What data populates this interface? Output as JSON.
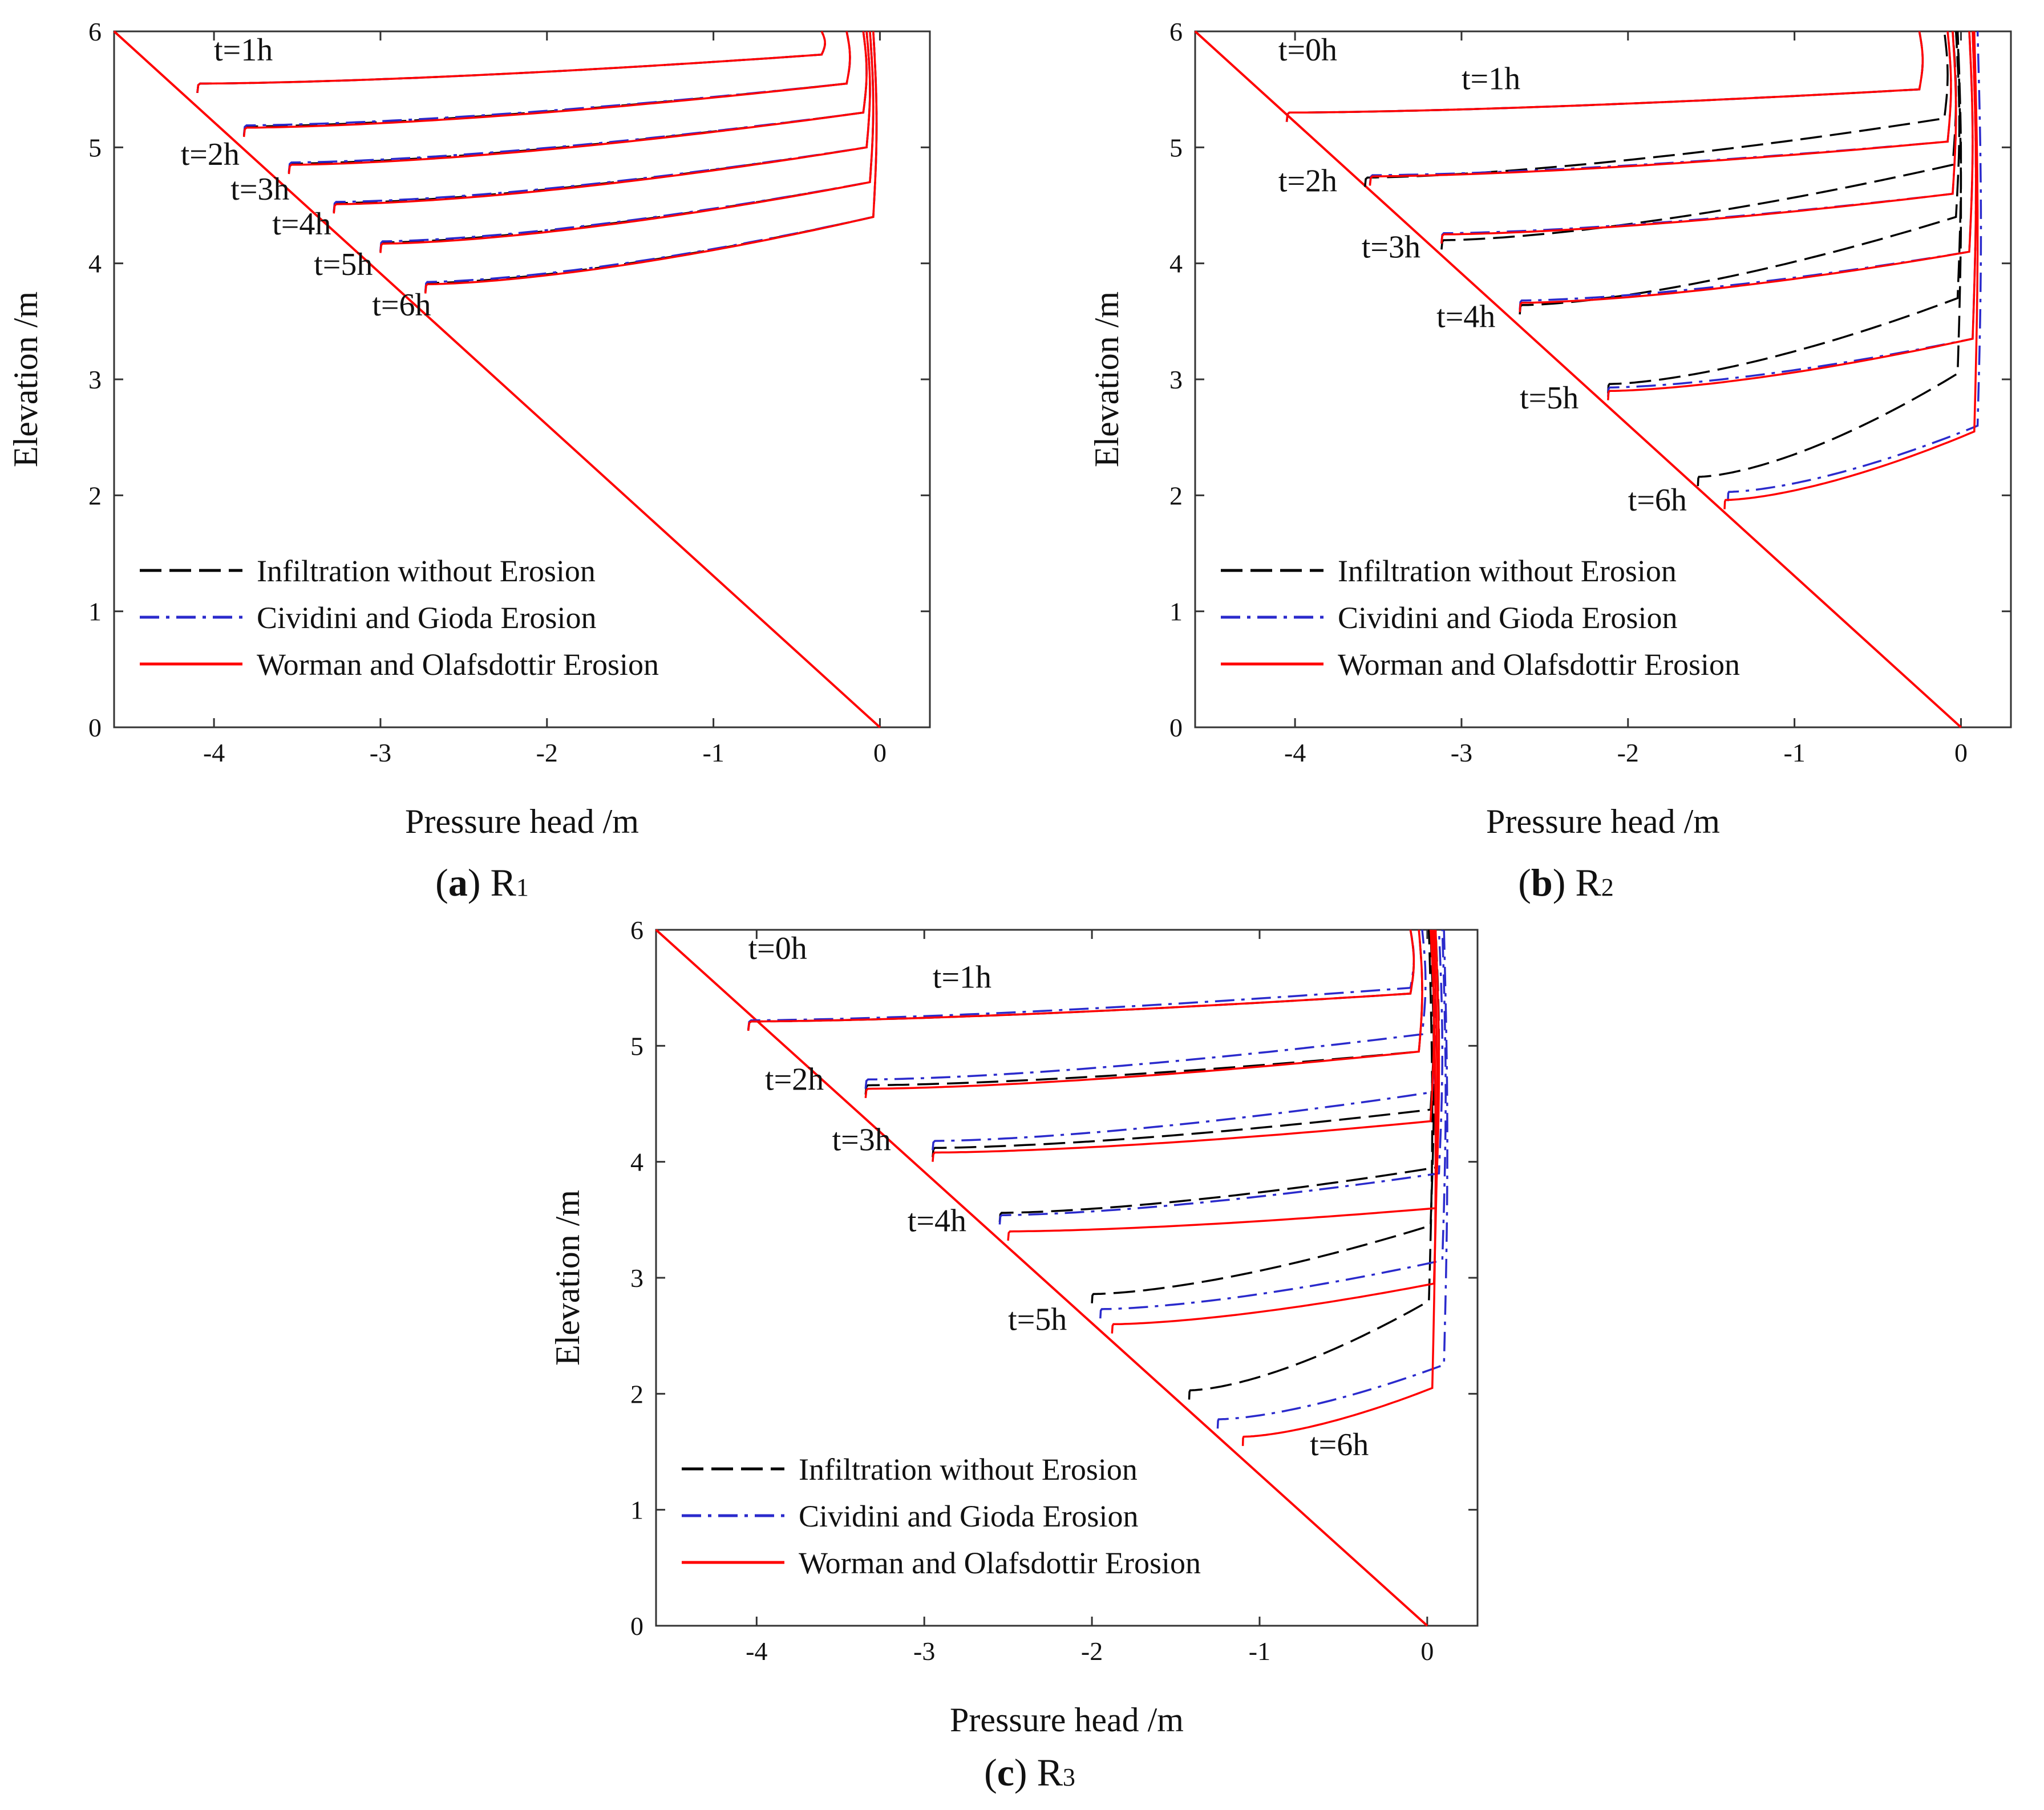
{
  "figure": {
    "description_present": false
  },
  "colors": {
    "infiltration": "#000000",
    "cividini": "#2a2acc",
    "worman": "#ff0000",
    "axis": "#333333"
  },
  "legend": {
    "items": [
      {
        "name": "Infiltration without Erosion",
        "style": "dashed",
        "color_key": "infiltration"
      },
      {
        "name": "Cividini and Gioda  Erosion",
        "style": "dashdot",
        "color_key": "cividini"
      },
      {
        "name": "Worman and Olafsdottir Erosion",
        "style": "solid",
        "color_key": "worman"
      }
    ]
  },
  "chart_data": [
    {
      "id": "R1",
      "type": "line",
      "caption_letter": "a",
      "caption_symbol": "R",
      "caption_subscript": "1",
      "xlabel": "Pressure head /m",
      "ylabel": "Elevation /m",
      "xlim": [
        -4.6,
        0.3
      ],
      "ylim": [
        0,
        6
      ],
      "xticks": [
        -4,
        -3,
        -2,
        -1,
        0
      ],
      "yticks": [
        0,
        1,
        2,
        3,
        4,
        5,
        6
      ],
      "xtick_labels": [
        "-4",
        "-3",
        "-2",
        "-1",
        "0"
      ],
      "ytick_labels": [
        "0",
        "1",
        "2",
        "3",
        "4",
        "5",
        "6"
      ],
      "initial_line": {
        "x": [
          -4.6,
          0
        ],
        "y": [
          6,
          0
        ]
      },
      "time_labels": [
        {
          "text": "t=1h",
          "x": -4.0,
          "y": 5.75
        },
        {
          "text": "t=2h",
          "x": -4.2,
          "y": 4.85
        },
        {
          "text": "t=3h",
          "x": -3.9,
          "y": 4.55
        },
        {
          "text": "t=4h",
          "x": -3.65,
          "y": 4.25
        },
        {
          "text": "t=5h",
          "x": -3.4,
          "y": 3.9
        },
        {
          "text": "t=6h",
          "x": -3.05,
          "y": 3.55
        }
      ],
      "series": [
        {
          "name": "Infiltration without Erosion",
          "fronts": [
            {
              "time": "t=1h",
              "x0": -4.1,
              "y0": 5.47,
              "y_shallow": 5.8,
              "y_top": 6.0,
              "x_near_top": -0.35
            },
            {
              "time": "t=2h",
              "x0": -3.82,
              "y0": 5.1,
              "y_shallow": 5.55,
              "y_top": 6.0,
              "x_near_top": -0.2
            },
            {
              "time": "t=3h",
              "x0": -3.55,
              "y0": 4.78,
              "y_shallow": 5.3,
              "y_top": 6.0,
              "x_near_top": -0.1
            },
            {
              "time": "t=4h",
              "x0": -3.28,
              "y0": 4.44,
              "y_shallow": 5.0,
              "y_top": 6.0,
              "x_near_top": -0.08
            },
            {
              "time": "t=5h",
              "x0": -3.0,
              "y0": 4.1,
              "y_shallow": 4.7,
              "y_top": 6.0,
              "x_near_top": -0.06
            },
            {
              "time": "t=6h",
              "x0": -2.73,
              "y0": 3.75,
              "y_shallow": 4.4,
              "y_top": 6.0,
              "x_near_top": -0.04
            }
          ]
        },
        {
          "name": "Cividini and Gioda  Erosion",
          "fronts": [
            {
              "time": "t=1h",
              "x0": -4.1,
              "y0": 5.47,
              "y_shallow": 5.8,
              "y_top": 6.0,
              "x_near_top": -0.35
            },
            {
              "time": "t=2h",
              "x0": -3.82,
              "y0": 5.11,
              "y_shallow": 5.55,
              "y_top": 6.0,
              "x_near_top": -0.2
            },
            {
              "time": "t=3h",
              "x0": -3.55,
              "y0": 4.79,
              "y_shallow": 5.3,
              "y_top": 6.0,
              "x_near_top": -0.1
            },
            {
              "time": "t=4h",
              "x0": -3.28,
              "y0": 4.45,
              "y_shallow": 5.0,
              "y_top": 6.0,
              "x_near_top": -0.08
            },
            {
              "time": "t=5h",
              "x0": -3.0,
              "y0": 4.11,
              "y_shallow": 4.7,
              "y_top": 6.0,
              "x_near_top": -0.06
            },
            {
              "time": "t=6h",
              "x0": -2.73,
              "y0": 3.76,
              "y_shallow": 4.4,
              "y_top": 6.0,
              "x_near_top": -0.04
            }
          ]
        },
        {
          "name": "Worman and Olafsdottir Erosion",
          "fronts": [
            {
              "time": "t=1h",
              "x0": -4.1,
              "y0": 5.47,
              "y_shallow": 5.8,
              "y_top": 6.0,
              "x_near_top": -0.35
            },
            {
              "time": "t=2h",
              "x0": -3.82,
              "y0": 5.09,
              "y_shallow": 5.55,
              "y_top": 6.0,
              "x_near_top": -0.2
            },
            {
              "time": "t=3h",
              "x0": -3.55,
              "y0": 4.77,
              "y_shallow": 5.3,
              "y_top": 6.0,
              "x_near_top": -0.1
            },
            {
              "time": "t=4h",
              "x0": -3.28,
              "y0": 4.43,
              "y_shallow": 5.0,
              "y_top": 6.0,
              "x_near_top": -0.08
            },
            {
              "time": "t=5h",
              "x0": -3.0,
              "y0": 4.09,
              "y_shallow": 4.7,
              "y_top": 6.0,
              "x_near_top": -0.06
            },
            {
              "time": "t=6h",
              "x0": -2.73,
              "y0": 3.74,
              "y_shallow": 4.4,
              "y_top": 6.0,
              "x_near_top": -0.04
            }
          ]
        }
      ]
    },
    {
      "id": "R2",
      "type": "line",
      "caption_letter": "b",
      "caption_symbol": "R",
      "caption_subscript": "2",
      "xlabel": "Pressure head /m",
      "ylabel": "Elevation /m",
      "xlim": [
        -4.6,
        0.3
      ],
      "ylim": [
        0,
        6
      ],
      "xticks": [
        -4,
        -3,
        -2,
        -1,
        0
      ],
      "yticks": [
        0,
        1,
        2,
        3,
        4,
        5,
        6
      ],
      "xtick_labels": [
        "-4",
        "-3",
        "-2",
        "-1",
        "0"
      ],
      "ytick_labels": [
        "0",
        "1",
        "2",
        "3",
        "4",
        "5",
        "6"
      ],
      "initial_line": {
        "x": [
          -4.6,
          0
        ],
        "y": [
          6,
          0
        ]
      },
      "time_labels": [
        {
          "text": "t=0h",
          "x": -4.1,
          "y": 5.75
        },
        {
          "text": "t=1h",
          "x": -3.0,
          "y": 5.5
        },
        {
          "text": "t=2h",
          "x": -4.1,
          "y": 4.62
        },
        {
          "text": "t=3h",
          "x": -3.6,
          "y": 4.05
        },
        {
          "text": "t=4h",
          "x": -3.15,
          "y": 3.45
        },
        {
          "text": "t=5h",
          "x": -2.65,
          "y": 2.75
        },
        {
          "text": "t=6h",
          "x": -2.0,
          "y": 1.87
        }
      ],
      "series": [
        {
          "name": "Infiltration without Erosion",
          "fronts": [
            {
              "time": "t=1h",
              "x0": -4.05,
              "y0": 5.22,
              "y_shallow": 5.5,
              "y_top": 6.0,
              "x_near_top": -0.25
            },
            {
              "time": "t=2h",
              "x0": -3.58,
              "y0": 4.66,
              "y_shallow": 5.25,
              "y_top": 6.0,
              "x_near_top": -0.1
            },
            {
              "time": "t=3h",
              "x0": -3.12,
              "y0": 4.12,
              "y_shallow": 4.85,
              "y_top": 6.0,
              "x_near_top": -0.05
            },
            {
              "time": "t=4h",
              "x0": -2.65,
              "y0": 3.56,
              "y_shallow": 4.4,
              "y_top": 6.0,
              "x_near_top": -0.03
            },
            {
              "time": "t=5h",
              "x0": -2.12,
              "y0": 2.88,
              "y_shallow": 3.7,
              "y_top": 6.0,
              "x_near_top": -0.02
            },
            {
              "time": "t=6h",
              "x0": -1.58,
              "y0": 2.08,
              "y_shallow": 3.05,
              "y_top": 6.0,
              "x_near_top": -0.02
            }
          ]
        },
        {
          "name": "Cividini and Gioda  Erosion",
          "fronts": [
            {
              "time": "t=1h",
              "x0": -4.05,
              "y0": 5.22,
              "y_shallow": 5.5,
              "y_top": 6.0,
              "x_near_top": -0.25
            },
            {
              "time": "t=2h",
              "x0": -3.55,
              "y0": 4.68,
              "y_shallow": 5.05,
              "y_top": 6.0,
              "x_near_top": -0.08
            },
            {
              "time": "t=3h",
              "x0": -3.12,
              "y0": 4.18,
              "y_shallow": 4.6,
              "y_top": 6.0,
              "x_near_top": -0.05
            },
            {
              "time": "t=4h",
              "x0": -2.65,
              "y0": 3.6,
              "y_shallow": 4.1,
              "y_top": 6.0,
              "x_near_top": 0.05
            },
            {
              "time": "t=5h",
              "x0": -2.12,
              "y0": 2.85,
              "y_shallow": 3.35,
              "y_top": 6.0,
              "x_near_top": 0.07
            },
            {
              "time": "t=6h",
              "x0": -1.4,
              "y0": 1.95,
              "y_shallow": 2.6,
              "y_top": 6.0,
              "x_near_top": 0.1
            }
          ]
        },
        {
          "name": "Worman and Olafsdottir Erosion",
          "fronts": [
            {
              "time": "t=1h",
              "x0": -4.05,
              "y0": 5.22,
              "y_shallow": 5.5,
              "y_top": 6.0,
              "x_near_top": -0.25
            },
            {
              "time": "t=2h",
              "x0": -3.55,
              "y0": 4.67,
              "y_shallow": 5.05,
              "y_top": 6.0,
              "x_near_top": -0.08
            },
            {
              "time": "t=3h",
              "x0": -3.12,
              "y0": 4.17,
              "y_shallow": 4.6,
              "y_top": 6.0,
              "x_near_top": -0.05
            },
            {
              "time": "t=4h",
              "x0": -2.65,
              "y0": 3.58,
              "y_shallow": 4.1,
              "y_top": 6.0,
              "x_near_top": 0.05
            },
            {
              "time": "t=5h",
              "x0": -2.12,
              "y0": 2.82,
              "y_shallow": 3.35,
              "y_top": 6.0,
              "x_near_top": 0.07
            },
            {
              "time": "t=6h",
              "x0": -1.42,
              "y0": 1.88,
              "y_shallow": 2.55,
              "y_top": 6.0,
              "x_near_top": 0.08
            }
          ]
        }
      ]
    },
    {
      "id": "R3",
      "type": "line",
      "caption_letter": "c",
      "caption_symbol": "R",
      "caption_subscript": "3",
      "xlabel": "Pressure head /m",
      "ylabel": "Elevation /m",
      "xlim": [
        -4.6,
        0.3
      ],
      "ylim": [
        0,
        6
      ],
      "xticks": [
        -4,
        -3,
        -2,
        -1,
        0
      ],
      "yticks": [
        0,
        1,
        2,
        3,
        4,
        5,
        6
      ],
      "xtick_labels": [
        "-4",
        "-3",
        "-2",
        "-1",
        "0"
      ],
      "ytick_labels": [
        "0",
        "1",
        "2",
        "3",
        "4",
        "5",
        "6"
      ],
      "initial_line": {
        "x": [
          -4.6,
          0
        ],
        "y": [
          6,
          0
        ]
      },
      "time_labels": [
        {
          "text": "t=0h",
          "x": -4.05,
          "y": 5.75
        },
        {
          "text": "t=1h",
          "x": -2.95,
          "y": 5.5
        },
        {
          "text": "t=2h",
          "x": -3.95,
          "y": 4.62
        },
        {
          "text": "t=3h",
          "x": -3.55,
          "y": 4.1
        },
        {
          "text": "t=4h",
          "x": -3.1,
          "y": 3.4
        },
        {
          "text": "t=5h",
          "x": -2.5,
          "y": 2.55
        },
        {
          "text": "t=6h",
          "x": -0.7,
          "y": 1.47
        }
      ],
      "series": [
        {
          "name": "Infiltration without Erosion",
          "fronts": [
            {
              "time": "t=1h",
              "x0": -4.05,
              "y0": 5.13,
              "y_shallow": 5.45,
              "y_top": 6.0,
              "x_near_top": -0.1
            },
            {
              "time": "t=2h",
              "x0": -3.35,
              "y0": 4.58,
              "y_shallow": 4.95,
              "y_top": 6.0,
              "x_near_top": -0.05
            },
            {
              "time": "t=3h",
              "x0": -2.95,
              "y0": 4.04,
              "y_shallow": 4.45,
              "y_top": 6.0,
              "x_near_top": 0.02
            },
            {
              "time": "t=4h",
              "x0": -2.55,
              "y0": 3.48,
              "y_shallow": 3.95,
              "y_top": 6.0,
              "x_near_top": 0.05
            },
            {
              "time": "t=5h",
              "x0": -2.0,
              "y0": 2.78,
              "y_shallow": 3.45,
              "y_top": 6.0,
              "x_near_top": 0.02
            },
            {
              "time": "t=6h",
              "x0": -1.42,
              "y0": 1.95,
              "y_shallow": 2.8,
              "y_top": 6.0,
              "x_near_top": 0.01
            }
          ]
        },
        {
          "name": "Cividini and Gioda  Erosion",
          "fronts": [
            {
              "time": "t=1h",
              "x0": -4.05,
              "y0": 5.14,
              "y_shallow": 5.5,
              "y_top": 6.0,
              "x_near_top": -0.1
            },
            {
              "time": "t=2h",
              "x0": -3.35,
              "y0": 4.63,
              "y_shallow": 5.1,
              "y_top": 6.0,
              "x_near_top": -0.03
            },
            {
              "time": "t=3h",
              "x0": -2.95,
              "y0": 4.1,
              "y_shallow": 4.6,
              "y_top": 6.0,
              "x_near_top": 0.03
            },
            {
              "time": "t=4h",
              "x0": -2.55,
              "y0": 3.46,
              "y_shallow": 3.9,
              "y_top": 6.0,
              "x_near_top": 0.07
            },
            {
              "time": "t=5h",
              "x0": -1.95,
              "y0": 2.65,
              "y_shallow": 3.15,
              "y_top": 6.0,
              "x_near_top": 0.09
            },
            {
              "time": "t=6h",
              "x0": -1.25,
              "y0": 1.7,
              "y_shallow": 2.25,
              "y_top": 6.0,
              "x_near_top": 0.1
            }
          ]
        },
        {
          "name": "Worman and Olafsdottir Erosion",
          "fronts": [
            {
              "time": "t=1h",
              "x0": -4.05,
              "y0": 5.13,
              "y_shallow": 5.45,
              "y_top": 6.0,
              "x_near_top": -0.1
            },
            {
              "time": "t=2h",
              "x0": -3.35,
              "y0": 4.55,
              "y_shallow": 4.95,
              "y_top": 6.0,
              "x_near_top": -0.05
            },
            {
              "time": "t=3h",
              "x0": -2.95,
              "y0": 4.0,
              "y_shallow": 4.35,
              "y_top": 6.0,
              "x_near_top": 0.02
            },
            {
              "time": "t=4h",
              "x0": -2.5,
              "y0": 3.32,
              "y_shallow": 3.6,
              "y_top": 6.0,
              "x_near_top": 0.05
            },
            {
              "time": "t=5h",
              "x0": -1.88,
              "y0": 2.52,
              "y_shallow": 2.95,
              "y_top": 6.0,
              "x_near_top": 0.04
            },
            {
              "time": "t=6h",
              "x0": -1.1,
              "y0": 1.55,
              "y_shallow": 2.05,
              "y_top": 6.0,
              "x_near_top": 0.03
            }
          ]
        }
      ]
    }
  ]
}
